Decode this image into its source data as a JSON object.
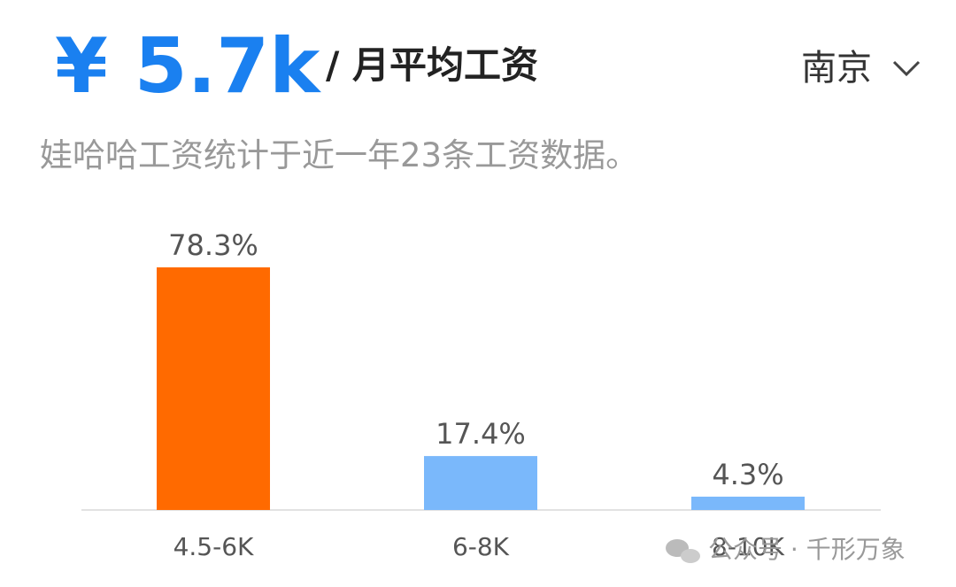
{
  "header": {
    "amount": "¥ 5.7k",
    "unit": "/ 月平均工资",
    "city": "南京",
    "subtitle": "娃哈哈工资统计于近一年23条工资数据。"
  },
  "chart_data": {
    "type": "bar",
    "categories": [
      "4.5-6K",
      "6-8K",
      "8-10K"
    ],
    "values": [
      78.3,
      17.4,
      4.3
    ],
    "value_labels": [
      "78.3%",
      "17.4%",
      "4.3%"
    ],
    "colors": [
      "#ff6a00",
      "#7ab8fb",
      "#7ab8fb"
    ]
  },
  "watermark": "公众号 · 千形万象"
}
